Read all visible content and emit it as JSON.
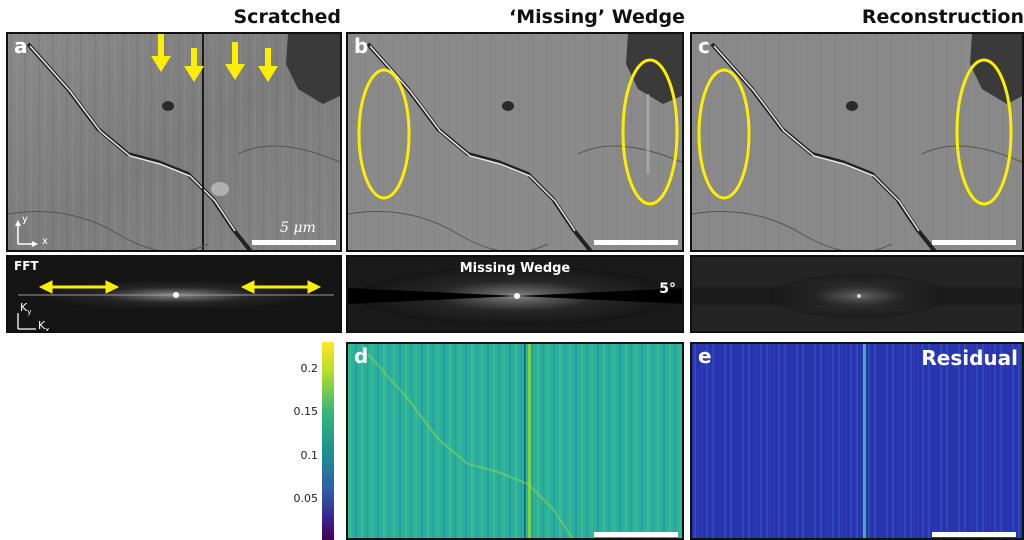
{
  "columns": {
    "scratched": "Scratched",
    "missing_wedge": "‘Missing’ Wedge",
    "reconstruction": "Reconstruction"
  },
  "panels": {
    "a": "a",
    "b": "b",
    "c": "c",
    "d": "d",
    "e": "e"
  },
  "scale_bar_text": "5 μm",
  "fft": {
    "label": "FFT",
    "ky": "K",
    "ky_sub": "y",
    "kx": "K",
    "kx_sub": "x"
  },
  "missing_wedge_label": "Missing Wedge",
  "wedge_angle": "5°",
  "residual_label": "Residual",
  "axes": {
    "y": "y",
    "x": "x"
  },
  "colorbar": {
    "ticks": [
      "0.2",
      "0.15",
      "0.1",
      "0.05"
    ],
    "tick_values": [
      0.2,
      0.15,
      0.1,
      0.05
    ],
    "range": [
      0.0,
      0.22
    ],
    "colormap": "viridis"
  },
  "colors": {
    "annotation_yellow": "#ffee00",
    "panel_border": "#111111",
    "residual_blue": "#2c2ca8"
  }
}
